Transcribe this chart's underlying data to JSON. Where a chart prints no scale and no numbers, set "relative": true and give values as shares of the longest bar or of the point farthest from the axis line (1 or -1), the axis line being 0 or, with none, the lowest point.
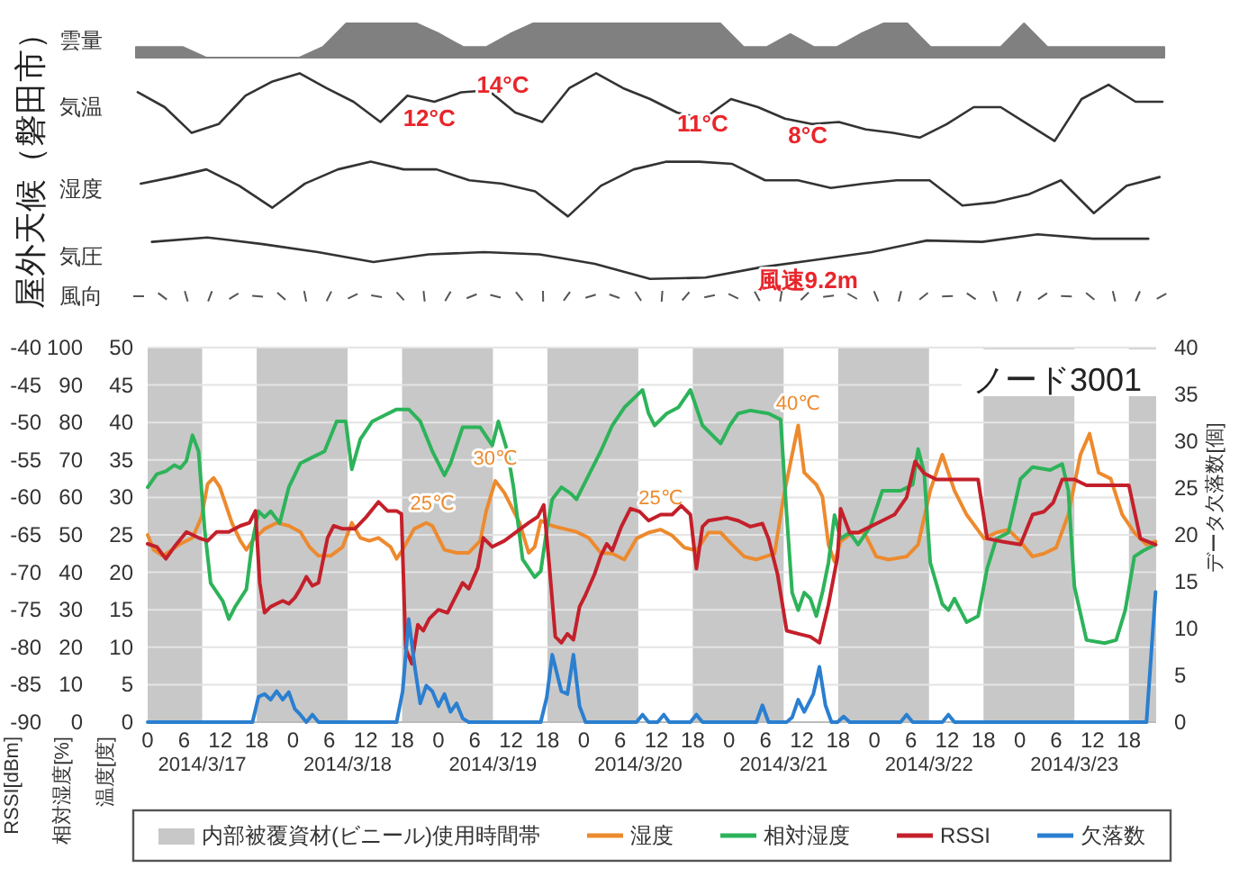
{
  "chart_data": [
    {
      "type": "other",
      "title": "屋外天候（磐田市）"
    },
    {
      "type": "area",
      "ylabel": "雲量",
      "relative": true,
      "color": "#808080",
      "categories": [
        null,
        null,
        null,
        null,
        null,
        null,
        null,
        null,
        null,
        null,
        null,
        null,
        null,
        null,
        null,
        null,
        null,
        null,
        null,
        null,
        null,
        null,
        null,
        null,
        null,
        null,
        null,
        null,
        null,
        null,
        null,
        null,
        null,
        null,
        null,
        null,
        null,
        null,
        null,
        null,
        null,
        null,
        null,
        null,
        null
      ],
      "values": [
        0.31,
        0.31,
        0.31,
        0,
        0,
        0,
        0,
        0,
        0.31,
        1,
        1,
        1,
        1,
        0.69,
        0.31,
        0.31,
        0.69,
        1,
        1,
        1,
        1,
        1,
        1,
        1,
        1,
        1,
        0.31,
        0.31,
        0.69,
        0.31,
        0.31,
        0.69,
        1,
        1,
        0.31,
        0.31,
        0.31,
        0.31,
        1,
        0.31,
        0.31,
        0.31,
        0.31,
        0.31,
        0.31
      ]
    },
    {
      "type": "line",
      "ylabel": "気温",
      "relative": true,
      "color": "#333333",
      "annotations": [
        "12°C",
        "14°C",
        "11°C",
        "8°C"
      ],
      "categories": [
        null,
        null,
        null,
        null,
        null,
        null,
        null,
        null,
        null,
        null,
        null,
        null,
        null,
        null,
        null,
        null,
        null,
        null,
        null,
        null,
        null,
        null,
        null,
        null,
        null,
        null,
        null,
        null,
        null,
        null,
        null,
        null,
        null,
        null,
        null,
        null,
        null,
        null,
        null
      ],
      "values": [
        0.72,
        0.5,
        0.12,
        0.25,
        0.67,
        0.88,
        1,
        0.78,
        0.58,
        0.28,
        0.67,
        0.58,
        0.72,
        0.75,
        0.42,
        0.28,
        0.78,
        1,
        0.78,
        0.62,
        0.42,
        0.33,
        0.62,
        0.5,
        0.33,
        0.25,
        0.28,
        0.17,
        0.12,
        0.05,
        0.25,
        0.5,
        0.5,
        0.25,
        0,
        0.62,
        0.83,
        0.58,
        0.58
      ]
    },
    {
      "type": "line",
      "ylabel": "湿度",
      "relative": true,
      "color": "#333333",
      "categories": [
        null,
        null,
        null,
        null,
        null,
        null,
        null,
        null,
        null,
        null,
        null,
        null,
        null,
        null,
        null,
        null,
        null,
        null,
        null,
        null,
        null,
        null,
        null,
        null,
        null,
        null,
        null,
        null,
        null,
        null,
        null,
        null
      ],
      "values": [
        0.6,
        0.72,
        0.86,
        0.56,
        0.16,
        0.6,
        0.86,
        1,
        0.86,
        0.86,
        0.66,
        0.6,
        0.46,
        0,
        0.56,
        0.86,
        1,
        1,
        0.96,
        0.66,
        0.66,
        0.52,
        0.6,
        0.66,
        0.66,
        0.2,
        0.26,
        0.4,
        0.66,
        0.06,
        0.56,
        0.72
      ]
    },
    {
      "type": "line",
      "ylabel": "気圧",
      "relative": true,
      "color": "#333333",
      "annotations": [
        "風速9.2m"
      ],
      "categories": [
        null,
        null,
        null,
        null,
        null,
        null,
        null,
        null,
        null,
        null,
        null,
        null,
        null,
        null,
        null,
        null,
        null,
        null,
        null
      ],
      "values": [
        0.83,
        0.93,
        0.78,
        0.6,
        0.38,
        0.55,
        0.6,
        0.55,
        0.34,
        0,
        0.03,
        0.26,
        0.43,
        0.6,
        0.86,
        0.83,
        1,
        0.9,
        0.9
      ]
    },
    {
      "type": "other",
      "ylabel": "風向"
    },
    {
      "type": "line",
      "title": "ノード3001",
      "ylabel": "温度[度]",
      "y2label": "相対湿度[%]",
      "xlim": [
        "2014-03-17T00:00",
        "2014-03-23T22:30"
      ],
      "xticks": [
        {
          "value": "2014-03-17T00:00",
          "label": "0"
        },
        {
          "value": "2014-03-17T06:00",
          "label": "6"
        },
        {
          "value": "2014-03-17T12:00",
          "label": "12"
        },
        {
          "value": "2014-03-17T18:00",
          "label": "18"
        },
        {
          "value": "2014-03-18T00:00",
          "label": "0"
        },
        {
          "value": "2014-03-18T06:00",
          "label": "6"
        },
        {
          "value": "2014-03-18T12:00",
          "label": "12"
        },
        {
          "value": "2014-03-18T18:00",
          "label": "18"
        },
        {
          "value": "2014-03-19T00:00",
          "label": "0"
        },
        {
          "value": "2014-03-19T06:00",
          "label": "6"
        },
        {
          "value": "2014-03-19T12:00",
          "label": "12"
        },
        {
          "value": "2014-03-19T18:00",
          "label": "18"
        },
        {
          "value": "2014-03-20T00:00",
          "label": "0"
        },
        {
          "value": "2014-03-20T06:00",
          "label": "6"
        },
        {
          "value": "2014-03-20T12:00",
          "label": "12"
        },
        {
          "value": "2014-03-20T18:00",
          "label": "18"
        },
        {
          "value": "2014-03-21T00:00",
          "label": "0"
        },
        {
          "value": "2014-03-21T06:00",
          "label": "6"
        },
        {
          "value": "2014-03-21T12:00",
          "label": "12"
        },
        {
          "value": "2014-03-21T18:00",
          "label": "18"
        },
        {
          "value": "2014-03-22T00:00",
          "label": "0"
        },
        {
          "value": "2014-03-22T06:00",
          "label": "6"
        },
        {
          "value": "2014-03-22T12:00",
          "label": "12"
        },
        {
          "value": "2014-03-22T18:00",
          "label": "18"
        },
        {
          "value": "2014-03-23T00:00",
          "label": "0"
        },
        {
          "value": "2014-03-23T06:00",
          "label": "6"
        },
        {
          "value": "2014-03-23T12:00",
          "label": "12"
        },
        {
          "value": "2014-03-23T18:00",
          "label": "18"
        }
      ],
      "ylim": [
        0,
        50
      ],
      "yticks": [
        0,
        5,
        10,
        15,
        20,
        25,
        30,
        35,
        40,
        45,
        50
      ],
      "y2lim": [
        0,
        100
      ],
      "y2ticks": [
        0,
        10,
        20,
        30,
        40,
        50,
        60,
        70,
        80,
        90,
        100
      ],
      "grid": "y",
      "legend": "bottom",
      "bands": [
        {
          "axis": "x",
          "from": "2014-03-17T00:00",
          "to": "2014-03-17T09:00",
          "color": "#c8c8c8",
          "label": "内部被覆資材(ビニール)使用時間帯"
        },
        {
          "axis": "x",
          "from": "2014-03-17T18:00",
          "to": "2014-03-18T09:00",
          "color": "#c8c8c8"
        },
        {
          "axis": "x",
          "from": "2014-03-18T18:00",
          "to": "2014-03-19T09:00",
          "color": "#c8c8c8"
        },
        {
          "axis": "x",
          "from": "2014-03-19T18:00",
          "to": "2014-03-20T09:00",
          "color": "#c8c8c8"
        },
        {
          "axis": "x",
          "from": "2014-03-20T18:00",
          "to": "2014-03-21T09:00",
          "color": "#c8c8c8"
        },
        {
          "axis": "x",
          "from": "2014-03-21T18:00",
          "to": "2014-03-22T09:00",
          "color": "#c8c8c8"
        },
        {
          "axis": "x",
          "from": "2014-03-22T18:00",
          "to": "2014-03-23T09:00",
          "color": "#c8c8c8"
        },
        {
          "axis": "x",
          "from": "2014-03-23T18:00",
          "to": "2014-03-23T22:30",
          "color": "#c8c8c8"
        }
      ],
      "annotations": [
        {
          "text": "30℃",
          "x": "2014-03-19T09:24",
          "y": 32.2
        },
        {
          "text": "25℃",
          "x": "2014-03-18T23:00",
          "y": 26.2
        },
        {
          "text": "25℃",
          "x": "2014-03-20T12:42",
          "y": 25.7
        },
        {
          "text": "40℃",
          "x": "2014-03-21T11:24",
          "y": 39.6
        },
        "2014/3/17",
        "2014/3/18",
        "2014/3/19",
        "2014/3/20",
        "2014/3/21",
        "2014/3/22",
        "2014/3/23"
      ],
      "series": [
        {
          "name": "湿度",
          "color": "#ed8a2e",
          "x": [
            "2014-03-17T00:00",
            "2014-03-17T01:00",
            "2014-03-17T02:30",
            "2014-03-17T04:00",
            "2014-03-17T05:24",
            "2014-03-17T07:24",
            "2014-03-17T08:54",
            "2014-03-17T09:54",
            "2014-03-17T10:54",
            "2014-03-17T11:54",
            "2014-03-17T12:54",
            "2014-03-17T13:54",
            "2014-03-17T15:18",
            "2014-03-17T16:18",
            "2014-03-17T17:18",
            "2014-03-17T19:18",
            "2014-03-17T21:18",
            "2014-03-17T23:18",
            "2014-03-18T01:12",
            "2014-03-18T02:42",
            "2014-03-18T04:12",
            "2014-03-18T06:12",
            "2014-03-18T08:12",
            "2014-03-18T09:42",
            "2014-03-18T11:06",
            "2014-03-18T12:36",
            "2014-03-18T14:06",
            "2014-03-18T16:06",
            "2014-03-18T17:06",
            "2014-03-18T18:06",
            "2014-03-18T20:00",
            "2014-03-18T22:00",
            "2014-03-18T23:00",
            "2014-03-19T01:00",
            "2014-03-19T03:00",
            "2014-03-19T05:00",
            "2014-03-19T06:54",
            "2014-03-19T07:54",
            "2014-03-19T09:24",
            "2014-03-19T10:54",
            "2014-03-19T12:24",
            "2014-03-19T13:24",
            "2014-03-19T14:54",
            "2014-03-19T15:54",
            "2014-03-19T16:54",
            "2014-03-19T18:48",
            "2014-03-19T20:48",
            "2014-03-19T22:48",
            "2014-03-20T00:48",
            "2014-03-20T02:48",
            "2014-03-20T04:42",
            "2014-03-20T06:42",
            "2014-03-20T08:42",
            "2014-03-20T10:42",
            "2014-03-20T12:42",
            "2014-03-20T14:36",
            "2014-03-20T16:36",
            "2014-03-20T18:36",
            "2014-03-20T20:36",
            "2014-03-20T22:36",
            "2014-03-21T00:30",
            "2014-03-21T02:30",
            "2014-03-21T04:30",
            "2014-03-21T07:30",
            "2014-03-21T09:00",
            "2014-03-21T10:24",
            "2014-03-21T11:24",
            "2014-03-21T12:24",
            "2014-03-21T14:24",
            "2014-03-21T15:24",
            "2014-03-21T16:24",
            "2014-03-21T17:24",
            "2014-03-21T18:24",
            "2014-03-21T20:24",
            "2014-03-21T22:18",
            "2014-03-22T00:18",
            "2014-03-22T02:18",
            "2014-03-22T05:18",
            "2014-03-22T07:12",
            "2014-03-22T09:12",
            "2014-03-22T11:12",
            "2014-03-22T13:12",
            "2014-03-22T15:12",
            "2014-03-22T18:06",
            "2014-03-22T20:06",
            "2014-03-22T22:06",
            "2014-03-23T00:06",
            "2014-03-23T02:06",
            "2014-03-23T04:00",
            "2014-03-23T06:00",
            "2014-03-23T08:00",
            "2014-03-23T10:00",
            "2014-03-23T11:30",
            "2014-03-23T13:00",
            "2014-03-23T15:00",
            "2014-03-23T16:54",
            "2014-03-23T18:54",
            "2014-03-23T20:54",
            "2014-03-23T22:24"
          ],
          "values": [
            25,
            23,
            22.2,
            23,
            23.8,
            24.6,
            27.4,
            31.8,
            32.6,
            31.4,
            29,
            26.6,
            24.2,
            23,
            24.2,
            25.8,
            26.6,
            26.2,
            25.4,
            23.4,
            22.2,
            22.2,
            23.4,
            26.6,
            24.6,
            24.2,
            24.6,
            23.4,
            21.8,
            23,
            25.8,
            26.6,
            26.2,
            23,
            22.6,
            22.6,
            24.2,
            28.2,
            32.2,
            30.6,
            28.2,
            26.6,
            22.6,
            23.4,
            26.9,
            26.2,
            25.8,
            25.4,
            24.6,
            22.6,
            22.5,
            21.7,
            24.5,
            25.3,
            25.7,
            24.9,
            23.3,
            22.9,
            25.3,
            25.3,
            23.7,
            22.1,
            21.7,
            22.5,
            30.1,
            35.7,
            39.6,
            33.3,
            31.7,
            30.1,
            23.7,
            21.4,
            24.1,
            25.3,
            25.3,
            22.1,
            21.7,
            22.1,
            23.7,
            30.9,
            35.7,
            30.9,
            27.7,
            24.5,
            25.3,
            25.7,
            24.1,
            22.1,
            22.5,
            23.3,
            27.7,
            35.7,
            38.5,
            33.3,
            32.5,
            27.7,
            25.3,
            23.7,
            24.1
          ]
        },
        {
          "name": "相対湿度",
          "color": "#2db35a",
          "axis": "y2",
          "x": [
            "2014-03-17T00:00",
            "2014-03-17T01:30",
            "2014-03-17T03:00",
            "2014-03-17T04:24",
            "2014-03-17T05:24",
            "2014-03-17T06:24",
            "2014-03-17T07:24",
            "2014-03-17T08:24",
            "2014-03-17T09:24",
            "2014-03-17T10:24",
            "2014-03-17T12:24",
            "2014-03-17T13:24",
            "2014-03-17T14:24",
            "2014-03-17T16:18",
            "2014-03-17T17:18",
            "2014-03-17T18:18",
            "2014-03-17T19:18",
            "2014-03-17T20:18",
            "2014-03-17T21:48",
            "2014-03-17T23:18",
            "2014-03-18T01:12",
            "2014-03-18T03:12",
            "2014-03-18T05:12",
            "2014-03-18T07:12",
            "2014-03-18T08:42",
            "2014-03-18T09:42",
            "2014-03-18T11:06",
            "2014-03-18T13:06",
            "2014-03-18T15:06",
            "2014-03-18T17:06",
            "2014-03-18T19:06",
            "2014-03-18T21:00",
            "2014-03-18T23:00",
            "2014-03-19T01:00",
            "2014-03-19T02:00",
            "2014-03-19T04:00",
            "2014-03-19T06:54",
            "2014-03-19T08:54",
            "2014-03-19T09:54",
            "2014-03-19T11:24",
            "2014-03-19T12:24",
            "2014-03-19T13:54",
            "2014-03-19T15:54",
            "2014-03-19T16:54",
            "2014-03-19T17:54",
            "2014-03-19T18:48",
            "2014-03-19T20:18",
            "2014-03-19T21:48",
            "2014-03-19T22:48",
            "2014-03-20T00:48",
            "2014-03-20T02:48",
            "2014-03-20T04:42",
            "2014-03-20T06:42",
            "2014-03-20T08:42",
            "2014-03-20T09:42",
            "2014-03-20T10:42",
            "2014-03-20T11:42",
            "2014-03-20T13:42",
            "2014-03-20T15:36",
            "2014-03-20T17:36",
            "2014-03-20T19:36",
            "2014-03-20T22:36",
            "2014-03-21T00:06",
            "2014-03-21T01:30",
            "2014-03-21T03:30",
            "2014-03-21T06:30",
            "2014-03-21T08:30",
            "2014-03-21T09:30",
            "2014-03-21T10:24",
            "2014-03-21T11:24",
            "2014-03-21T12:24",
            "2014-03-21T13:24",
            "2014-03-21T14:24",
            "2014-03-21T15:24",
            "2014-03-21T16:24",
            "2014-03-21T17:24",
            "2014-03-21T18:24",
            "2014-03-21T19:54",
            "2014-03-21T21:18",
            "2014-03-21T23:18",
            "2014-03-22T01:18",
            "2014-03-22T04:18",
            "2014-03-22T06:18",
            "2014-03-22T07:12",
            "2014-03-22T08:12",
            "2014-03-22T09:12",
            "2014-03-22T11:12",
            "2014-03-22T12:12",
            "2014-03-22T13:12",
            "2014-03-22T15:12",
            "2014-03-22T17:06",
            "2014-03-22T18:36",
            "2014-03-22T20:06",
            "2014-03-22T22:06",
            "2014-03-23T00:06",
            "2014-03-23T02:06",
            "2014-03-23T05:00",
            "2014-03-23T07:00",
            "2014-03-23T08:00",
            "2014-03-23T09:00",
            "2014-03-23T11:00",
            "2014-03-23T14:00",
            "2014-03-23T15:54",
            "2014-03-23T17:24",
            "2014-03-23T18:54",
            "2014-03-23T20:24",
            "2014-03-23T22:24"
          ],
          "values": [
            62.7,
            66.2,
            67,
            68.6,
            67.8,
            69.8,
            76.6,
            72.3,
            51.5,
            37.1,
            32.3,
            27.5,
            30.7,
            35.5,
            48.3,
            56.3,
            54.7,
            56.3,
            53.1,
            62.7,
            69.1,
            70.7,
            72.3,
            80.3,
            80.3,
            67.5,
            75.5,
            80.3,
            81.9,
            83.5,
            83.5,
            80.3,
            72.3,
            65.9,
            69.1,
            78.7,
            78.7,
            73.9,
            80.3,
            72.3,
            62.7,
            43.5,
            38.7,
            40.3,
            51.5,
            59.5,
            62.7,
            61.1,
            59.5,
            65.9,
            72.3,
            79.2,
            84,
            87.1,
            88.7,
            82.4,
            79.2,
            82.4,
            84,
            88.7,
            79.2,
            74.4,
            79.2,
            82.4,
            83.2,
            82.4,
            80.8,
            55.3,
            34.6,
            29.9,
            34.6,
            33,
            28.3,
            34.6,
            42.6,
            55.3,
            49,
            50.6,
            47.4,
            52.2,
            61.8,
            61.8,
            63.4,
            72.9,
            66.6,
            42.6,
            31.5,
            29.9,
            33,
            26.7,
            28.3,
            41,
            48.9,
            50.6,
            64.9,
            68.1,
            67.3,
            68.9,
            61.8,
            36.2,
            21.9,
            21.1,
            21.9,
            29.9,
            44.2,
            45.8,
            47.4
          ]
        }
      ]
    },
    {
      "type": "line",
      "ylabel": "RSSI[dBm]",
      "y2label": "データ欠落数[個]",
      "tick_labels": "y",
      "xlim": [
        "2014-03-17T00:00",
        "2014-03-23T22:30"
      ],
      "ylim": [
        -90,
        -40
      ],
      "yticks": [
        -90,
        -85,
        -80,
        -75,
        -70,
        -65,
        -60,
        -55,
        -50,
        -45,
        -40
      ],
      "y2lim": [
        0,
        40
      ],
      "y2ticks": [
        0,
        5,
        10,
        15,
        20,
        25,
        30,
        35,
        40
      ],
      "series": [
        {
          "name": "RSSI",
          "color": "#c4202b",
          "x": [
            "2014-03-17T00:00",
            "2014-03-17T01:30",
            "2014-03-17T03:00",
            "2014-03-17T04:24",
            "2014-03-17T06:24",
            "2014-03-17T08:24",
            "2014-03-17T09:54",
            "2014-03-17T11:24",
            "2014-03-17T13:24",
            "2014-03-17T15:18",
            "2014-03-17T16:48",
            "2014-03-17T17:48",
            "2014-03-17T18:30",
            "2014-03-17T19:18",
            "2014-03-17T20:18",
            "2014-03-17T21:18",
            "2014-03-17T22:18",
            "2014-03-17T23:18",
            "2014-03-18T00:18",
            "2014-03-18T01:12",
            "2014-03-18T02:12",
            "2014-03-18T03:12",
            "2014-03-18T04:12",
            "2014-03-18T05:42",
            "2014-03-18T06:42",
            "2014-03-18T08:12",
            "2014-03-18T10:12",
            "2014-03-18T12:06",
            "2014-03-18T14:06",
            "2014-03-18T15:36",
            "2014-03-18T17:06",
            "2014-03-18T17:54",
            "2014-03-18T18:36",
            "2014-03-18T19:36",
            "2014-03-18T20:36",
            "2014-03-18T21:30",
            "2014-03-18T22:30",
            "2014-03-19T00:00",
            "2014-03-19T01:30",
            "2014-03-19T02:30",
            "2014-03-19T04:00",
            "2014-03-19T05:00",
            "2014-03-19T06:30",
            "2014-03-19T07:24",
            "2014-03-19T08:54",
            "2014-03-19T10:54",
            "2014-03-19T12:54",
            "2014-03-19T14:54",
            "2014-03-19T16:24",
            "2014-03-19T17:24",
            "2014-03-19T18:18",
            "2014-03-19T19:18",
            "2014-03-19T20:18",
            "2014-03-19T21:18",
            "2014-03-19T22:18",
            "2014-03-19T23:18",
            "2014-03-20T00:18",
            "2014-03-20T01:48",
            "2014-03-20T02:48",
            "2014-03-20T03:48",
            "2014-03-20T04:42",
            "2014-03-20T06:12",
            "2014-03-20T07:42",
            "2014-03-20T09:12",
            "2014-03-20T10:42",
            "2014-03-20T12:42",
            "2014-03-20T14:36",
            "2014-03-20T16:06",
            "2014-03-20T17:36",
            "2014-03-20T18:36",
            "2014-03-20T19:36",
            "2014-03-20T20:36",
            "2014-03-20T23:36",
            "2014-03-21T01:30",
            "2014-03-21T03:30",
            "2014-03-21T05:30",
            "2014-03-21T06:30",
            "2014-03-21T08:00",
            "2014-03-21T09:30",
            "2014-03-21T11:24",
            "2014-03-21T13:24",
            "2014-03-21T14:54",
            "2014-03-21T16:24",
            "2014-03-21T17:54",
            "2014-03-21T18:24",
            "2014-03-21T19:54",
            "2014-03-21T21:18",
            "2014-03-21T23:18",
            "2014-03-22T01:18",
            "2014-03-22T03:18",
            "2014-03-22T05:18",
            "2014-03-22T06:42",
            "2014-03-22T08:12",
            "2014-03-22T10:12",
            "2014-03-22T12:12",
            "2014-03-22T15:12",
            "2014-03-22T17:06",
            "2014-03-22T18:36",
            "2014-03-22T21:06",
            "2014-03-23T00:06",
            "2014-03-23T02:06",
            "2014-03-23T04:00",
            "2014-03-23T05:30",
            "2014-03-23T07:00",
            "2014-03-23T09:00",
            "2014-03-23T11:00",
            "2014-03-23T14:00",
            "2014-03-23T16:24",
            "2014-03-23T18:00",
            "2014-03-23T19:54",
            "2014-03-23T22:24"
          ],
          "values": [
            -66.2,
            -66.6,
            -68.2,
            -66.6,
            -64.6,
            -65.4,
            -65.8,
            -64.6,
            -64.6,
            -63.8,
            -63.4,
            -61.8,
            -71.4,
            -75.4,
            -74.6,
            -74.2,
            -73.8,
            -74.2,
            -73.4,
            -72.2,
            -70.6,
            -71.8,
            -71.4,
            -65.4,
            -63.8,
            -64.2,
            -64.2,
            -62.6,
            -60.6,
            -61.8,
            -61.8,
            -62.2,
            -80.2,
            -82.2,
            -77,
            -77.8,
            -76.2,
            -75,
            -75.4,
            -73.8,
            -71.4,
            -72.2,
            -69.4,
            -65.4,
            -66.6,
            -65.8,
            -64.6,
            -63.4,
            -62.6,
            -61,
            -69,
            -78.6,
            -79.4,
            -78.2,
            -79,
            -74.6,
            -73,
            -70.2,
            -67.8,
            -66.2,
            -67.1,
            -63.9,
            -61.5,
            -61.9,
            -63.1,
            -62.3,
            -62.3,
            -61.1,
            -62.3,
            -69.5,
            -63.9,
            -63.1,
            -62.7,
            -63.1,
            -63.9,
            -63.5,
            -65.5,
            -70.3,
            -77.8,
            -78.2,
            -78.6,
            -79.4,
            -74.3,
            -67.9,
            -61.5,
            -64.7,
            -64.7,
            -63.9,
            -63.1,
            -62.3,
            -60,
            -55.2,
            -56.8,
            -57.6,
            -57.6,
            -57.6,
            -57.6,
            -65.5,
            -65.9,
            -66.3,
            -62.3,
            -61.9,
            -60.7,
            -57.6,
            -57.6,
            -58.4,
            -58.4,
            -58.4,
            -58.4,
            -65.5,
            -66.3
          ]
        },
        {
          "name": "欠落数",
          "color": "#2a7fd0",
          "axis": "y2",
          "x": [
            "2014-03-17T00:00",
            "2014-03-17T17:18",
            "2014-03-17T18:18",
            "2014-03-17T19:18",
            "2014-03-17T20:18",
            "2014-03-17T21:18",
            "2014-03-17T22:18",
            "2014-03-17T23:18",
            "2014-03-18T00:18",
            "2014-03-18T01:12",
            "2014-03-18T02:12",
            "2014-03-18T03:12",
            "2014-03-18T04:12",
            "2014-03-18T17:06",
            "2014-03-18T18:06",
            "2014-03-18T19:06",
            "2014-03-18T20:06",
            "2014-03-18T21:00",
            "2014-03-18T22:00",
            "2014-03-18T23:00",
            "2014-03-19T00:00",
            "2014-03-19T01:00",
            "2014-03-19T02:00",
            "2014-03-19T03:00",
            "2014-03-19T04:00",
            "2014-03-19T05:00",
            "2014-03-19T16:54",
            "2014-03-19T17:54",
            "2014-03-19T18:48",
            "2014-03-19T20:18",
            "2014-03-19T21:18",
            "2014-03-19T22:18",
            "2014-03-19T23:18",
            "2014-03-20T00:18",
            "2014-03-20T08:42",
            "2014-03-20T09:42",
            "2014-03-20T10:42",
            "2014-03-20T12:12",
            "2014-03-20T13:12",
            "2014-03-20T14:06",
            "2014-03-20T17:36",
            "2014-03-20T18:36",
            "2014-03-20T19:36",
            "2014-03-21T04:30",
            "2014-03-21T05:30",
            "2014-03-21T06:30",
            "2014-03-21T09:30",
            "2014-03-21T10:24",
            "2014-03-21T11:24",
            "2014-03-21T12:24",
            "2014-03-21T13:54",
            "2014-03-21T14:54",
            "2014-03-21T15:54",
            "2014-03-21T16:54",
            "2014-03-21T17:54",
            "2014-03-21T18:54",
            "2014-03-21T19:54",
            "2014-03-22T04:18",
            "2014-03-22T05:18",
            "2014-03-22T06:18",
            "2014-03-22T11:12",
            "2014-03-22T12:12",
            "2014-03-22T13:12",
            "2014-03-23T20:54",
            "2014-03-23T22:24"
          ],
          "values": [
            0,
            0,
            2.7,
            3,
            2.4,
            3.3,
            2.4,
            3.2,
            1.4,
            0.8,
            0,
            0.8,
            0,
            0,
            3.3,
            11,
            5.9,
            2,
            3.9,
            3.3,
            1.7,
            3,
            1.1,
            2,
            0.4,
            0,
            0,
            2.7,
            7.2,
            3.3,
            3,
            7.2,
            1.7,
            0,
            0,
            0.8,
            0,
            0,
            0.8,
            0,
            0,
            0.8,
            0,
            0,
            1.8,
            0,
            0,
            0.5,
            2.4,
            1.1,
            3,
            5.9,
            1.8,
            0,
            0,
            0.6,
            0,
            0,
            0.8,
            0,
            0,
            0.8,
            0,
            0,
            13.9
          ]
        }
      ]
    }
  ]
}
